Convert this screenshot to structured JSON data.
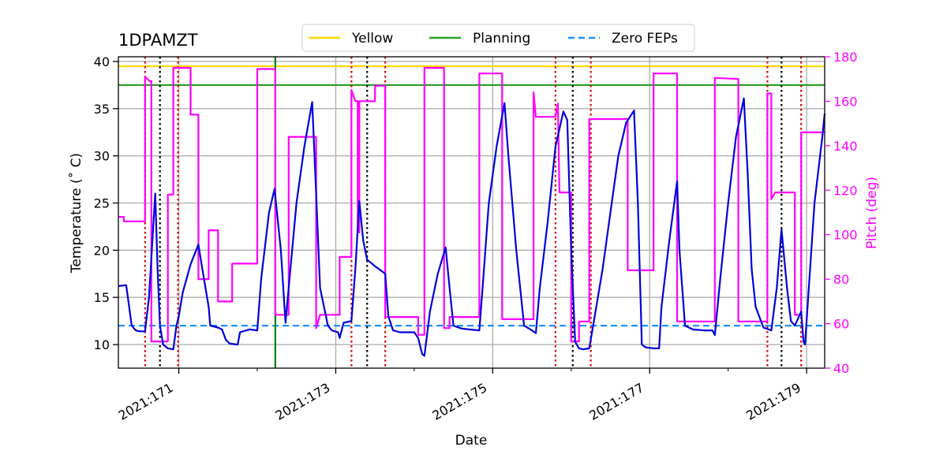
{
  "chart_data": {
    "type": "line",
    "title": "1DPAMZT",
    "xlabel": "Date",
    "ylabel_left": "Temperature ($^\\circ$C)",
    "ylabel_left_display": "Temperature (˚ C)",
    "ylabel_right": "Pitch (deg)",
    "xlim": [
      170.23,
      179.23
    ],
    "ylim_left": [
      7.5,
      40.5
    ],
    "ylim_right": [
      40,
      180
    ],
    "grid": true,
    "legend_placement": "top-center",
    "x_ticks": [
      {
        "value": 171,
        "label": "2021:171"
      },
      {
        "value": 173,
        "label": "2021:173"
      },
      {
        "value": 175,
        "label": "2021:175"
      },
      {
        "value": 177,
        "label": "2021:177"
      },
      {
        "value": 179,
        "label": "2021:179"
      }
    ],
    "x_minor_ticks": [
      172,
      174,
      176,
      178
    ],
    "y_left_ticks": [
      10,
      15,
      20,
      25,
      30,
      35,
      40
    ],
    "y_right_ticks": [
      40,
      60,
      80,
      100,
      120,
      140,
      160,
      180
    ],
    "limits": [
      {
        "name": "Yellow",
        "value": 39.5,
        "color": "#ffd700",
        "style": "solid"
      },
      {
        "name": "Planning",
        "value": 37.5,
        "color": "#2ca02c",
        "style": "solid"
      },
      {
        "name": "Zero FEPs",
        "value": 12.0,
        "color": "#1e90ff",
        "style": "dashed"
      }
    ],
    "vertical_markers": {
      "red_dotted": [
        170.57,
        170.99,
        173.2,
        173.63,
        175.8,
        176.25,
        178.5,
        178.93
      ],
      "black_dotted": [
        170.76,
        173.4,
        176.02,
        178.68
      ],
      "green_solid": [
        172.23
      ]
    },
    "series": [
      {
        "axis": "left",
        "color": "#0000dd",
        "points": [
          [
            170.23,
            16.2
          ],
          [
            170.33,
            16.3
          ],
          [
            170.4,
            12.0
          ],
          [
            170.45,
            11.5
          ],
          [
            170.5,
            11.4
          ],
          [
            170.57,
            11.4
          ],
          [
            170.62,
            15.0
          ],
          [
            170.67,
            22.0
          ],
          [
            170.7,
            26.0
          ],
          [
            170.73,
            18.0
          ],
          [
            170.76,
            12.0
          ],
          [
            170.8,
            10.0
          ],
          [
            170.86,
            9.6
          ],
          [
            170.93,
            9.5
          ],
          [
            170.97,
            12.0
          ],
          [
            171.0,
            13.0
          ],
          [
            171.05,
            15.5
          ],
          [
            171.15,
            18.5
          ],
          [
            171.25,
            20.6
          ],
          [
            171.3,
            18.0
          ],
          [
            171.38,
            14.0
          ],
          [
            171.4,
            12.0
          ],
          [
            171.5,
            11.8
          ],
          [
            171.55,
            11.6
          ],
          [
            171.6,
            10.5
          ],
          [
            171.65,
            10.1
          ],
          [
            171.75,
            10.0
          ],
          [
            171.78,
            11.3
          ],
          [
            171.9,
            11.6
          ],
          [
            172.0,
            11.5
          ],
          [
            172.05,
            17.0
          ],
          [
            172.15,
            24.0
          ],
          [
            172.22,
            26.5
          ],
          [
            172.3,
            20.0
          ],
          [
            172.36,
            12.3
          ],
          [
            172.4,
            16.0
          ],
          [
            172.5,
            25.0
          ],
          [
            172.6,
            31.0
          ],
          [
            172.7,
            35.7
          ],
          [
            172.75,
            26.0
          ],
          [
            172.8,
            16.0
          ],
          [
            172.9,
            12.0
          ],
          [
            172.95,
            11.5
          ],
          [
            173.03,
            11.3
          ],
          [
            173.05,
            10.7
          ],
          [
            173.1,
            12.3
          ],
          [
            173.2,
            12.5
          ],
          [
            173.25,
            18.0
          ],
          [
            173.3,
            25.2
          ],
          [
            173.35,
            21.0
          ],
          [
            173.4,
            19.0
          ],
          [
            173.5,
            18.3
          ],
          [
            173.55,
            18.0
          ],
          [
            173.63,
            17.5
          ],
          [
            173.67,
            13.0
          ],
          [
            173.73,
            11.5
          ],
          [
            173.82,
            11.3
          ],
          [
            174.0,
            11.3
          ],
          [
            174.05,
            10.7
          ],
          [
            174.1,
            9.0
          ],
          [
            174.13,
            8.8
          ],
          [
            174.2,
            13.5
          ],
          [
            174.3,
            17.5
          ],
          [
            174.4,
            20.3
          ],
          [
            174.45,
            16.0
          ],
          [
            174.5,
            12.0
          ],
          [
            174.6,
            11.7
          ],
          [
            174.7,
            11.6
          ],
          [
            174.83,
            11.5
          ],
          [
            174.88,
            17.0
          ],
          [
            174.95,
            25.0
          ],
          [
            175.05,
            31.0
          ],
          [
            175.15,
            35.6
          ],
          [
            175.2,
            30.0
          ],
          [
            175.3,
            20.0
          ],
          [
            175.4,
            12.0
          ],
          [
            175.5,
            11.5
          ],
          [
            175.55,
            11.2
          ],
          [
            175.6,
            16.0
          ],
          [
            175.7,
            23.0
          ],
          [
            175.8,
            31.0
          ],
          [
            175.9,
            34.7
          ],
          [
            175.95,
            33.8
          ],
          [
            176.0,
            20.0
          ],
          [
            176.05,
            10.3
          ],
          [
            176.1,
            9.6
          ],
          [
            176.15,
            9.5
          ],
          [
            176.23,
            9.6
          ],
          [
            176.3,
            13.0
          ],
          [
            176.4,
            18.0
          ],
          [
            176.5,
            24.0
          ],
          [
            176.6,
            30.0
          ],
          [
            176.7,
            33.5
          ],
          [
            176.8,
            34.8
          ],
          [
            176.85,
            25.0
          ],
          [
            176.9,
            10.0
          ],
          [
            176.95,
            9.7
          ],
          [
            177.05,
            9.6
          ],
          [
            177.12,
            9.6
          ],
          [
            177.15,
            14.0
          ],
          [
            177.25,
            21.0
          ],
          [
            177.35,
            27.3
          ],
          [
            177.38,
            20.0
          ],
          [
            177.45,
            12.0
          ],
          [
            177.55,
            11.6
          ],
          [
            177.7,
            11.5
          ],
          [
            177.8,
            11.5
          ],
          [
            177.83,
            11.0
          ],
          [
            177.9,
            17.0
          ],
          [
            178.0,
            25.0
          ],
          [
            178.1,
            32.0
          ],
          [
            178.2,
            36.1
          ],
          [
            178.25,
            28.0
          ],
          [
            178.3,
            18.0
          ],
          [
            178.35,
            14.0
          ],
          [
            178.45,
            11.8
          ],
          [
            178.55,
            11.5
          ],
          [
            178.62,
            16.0
          ],
          [
            178.68,
            22.2
          ],
          [
            178.75,
            16.0
          ],
          [
            178.8,
            12.5
          ],
          [
            178.85,
            12.0
          ],
          [
            178.93,
            13.5
          ],
          [
            178.96,
            10.3
          ],
          [
            178.98,
            10.0
          ],
          [
            179.02,
            15.0
          ],
          [
            179.1,
            25.0
          ],
          [
            179.2,
            32.0
          ],
          [
            179.23,
            34.5
          ]
        ]
      },
      {
        "axis": "right",
        "color": "#ff00ff",
        "points": [
          [
            170.23,
            108.0
          ],
          [
            170.3,
            108.0
          ],
          [
            170.3,
            106.0
          ],
          [
            170.57,
            106.0
          ],
          [
            170.57,
            171.0
          ],
          [
            170.63,
            169.0
          ],
          [
            170.65,
            169.0
          ],
          [
            170.65,
            52.0
          ],
          [
            170.76,
            52.0
          ],
          [
            170.86,
            52.0
          ],
          [
            170.86,
            118.0
          ],
          [
            170.93,
            118.0
          ],
          [
            170.93,
            175.0
          ],
          [
            171.0,
            175.0
          ],
          [
            171.15,
            175.0
          ],
          [
            171.15,
            154.0
          ],
          [
            171.25,
            154.0
          ],
          [
            171.25,
            80.0
          ],
          [
            171.38,
            80.0
          ],
          [
            171.38,
            102.0
          ],
          [
            171.5,
            102.0
          ],
          [
            171.5,
            70.0
          ],
          [
            171.68,
            70.0
          ],
          [
            171.68,
            87.0
          ],
          [
            172.0,
            87.0
          ],
          [
            172.0,
            174.5
          ],
          [
            172.23,
            174.5
          ],
          [
            172.23,
            64.0
          ],
          [
            172.4,
            64.0
          ],
          [
            172.4,
            144.0
          ],
          [
            172.75,
            144.0
          ],
          [
            172.75,
            58.0
          ],
          [
            172.8,
            64.0
          ],
          [
            173.05,
            64.0
          ],
          [
            173.05,
            90.0
          ],
          [
            173.2,
            90.0
          ],
          [
            173.2,
            165.0
          ],
          [
            173.25,
            160.0
          ],
          [
            173.28,
            160.0
          ],
          [
            173.28,
            101.0
          ],
          [
            173.3,
            101.0
          ],
          [
            173.3,
            160.0
          ],
          [
            173.5,
            160.0
          ],
          [
            173.5,
            167.0
          ],
          [
            173.63,
            167.0
          ],
          [
            173.63,
            63.0
          ],
          [
            174.05,
            63.0
          ],
          [
            174.05,
            55.0
          ],
          [
            174.13,
            55.0
          ],
          [
            174.13,
            175.0
          ],
          [
            174.38,
            175.0
          ],
          [
            174.38,
            58.0
          ],
          [
            174.45,
            58.0
          ],
          [
            174.45,
            63.0
          ],
          [
            174.83,
            63.0
          ],
          [
            174.83,
            172.5
          ],
          [
            175.12,
            172.5
          ],
          [
            175.12,
            62.0
          ],
          [
            175.52,
            62.0
          ],
          [
            175.52,
            164.0
          ],
          [
            175.55,
            153.0
          ],
          [
            175.8,
            153.0
          ],
          [
            175.83,
            159.0
          ],
          [
            175.85,
            119.0
          ],
          [
            176.0,
            119.0
          ],
          [
            176.0,
            52.0
          ],
          [
            176.1,
            52.0
          ],
          [
            176.1,
            61.0
          ],
          [
            176.23,
            61.0
          ],
          [
            176.23,
            152.0
          ],
          [
            176.72,
            152.0
          ],
          [
            176.72,
            84.0
          ],
          [
            177.05,
            84.0
          ],
          [
            177.05,
            172.5
          ],
          [
            177.35,
            172.5
          ],
          [
            177.35,
            61.0
          ],
          [
            177.83,
            61.0
          ],
          [
            177.83,
            170.5
          ],
          [
            178.13,
            170.0
          ],
          [
            178.13,
            61.0
          ],
          [
            178.5,
            61.0
          ],
          [
            178.5,
            163.5
          ],
          [
            178.55,
            163.5
          ],
          [
            178.55,
            116.0
          ],
          [
            178.6,
            119.0
          ],
          [
            178.85,
            119.0
          ],
          [
            178.85,
            64.0
          ],
          [
            178.93,
            64.0
          ],
          [
            178.93,
            146.0
          ],
          [
            179.23,
            146.0
          ]
        ]
      }
    ]
  }
}
